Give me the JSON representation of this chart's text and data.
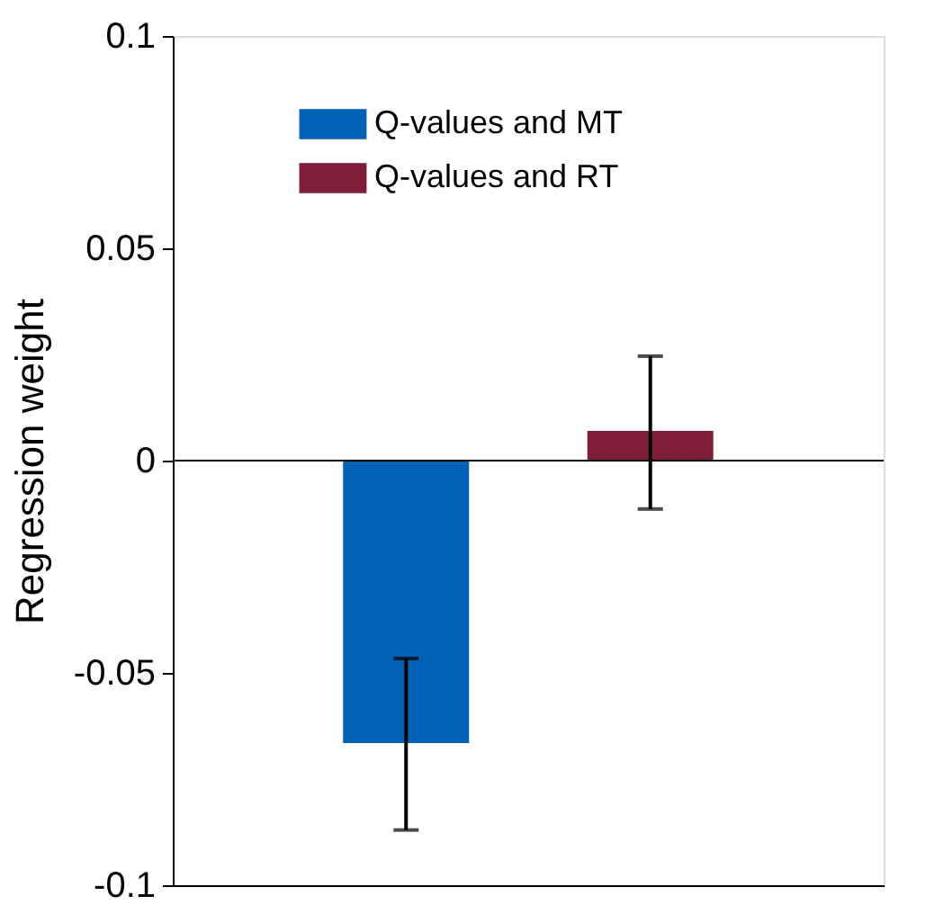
{
  "chart_data": {
    "type": "bar",
    "ylabel": "Regression weight",
    "categories": [
      null,
      null
    ],
    "series": [
      {
        "name": "Q-values and MT",
        "color": "#0061b5",
        "values": [
          -0.0665,
          null
        ],
        "errors": [
          [
            -0.087,
            -0.0466
          ],
          null
        ]
      },
      {
        "name": "Q-values and RT",
        "color": "#7e1e39",
        "values": [
          null,
          0.007
        ],
        "errors": [
          null,
          [
            -0.0114,
            0.0246
          ]
        ]
      }
    ],
    "ylim": [
      -0.1,
      0.1
    ],
    "yticks": [
      -0.1,
      -0.05,
      0,
      0.05,
      0.1
    ],
    "tick_labels": "y",
    "legend": "top",
    "ref_lines": [
      {
        "axis": "y",
        "value": 0,
        "color": "#000000"
      }
    ]
  }
}
